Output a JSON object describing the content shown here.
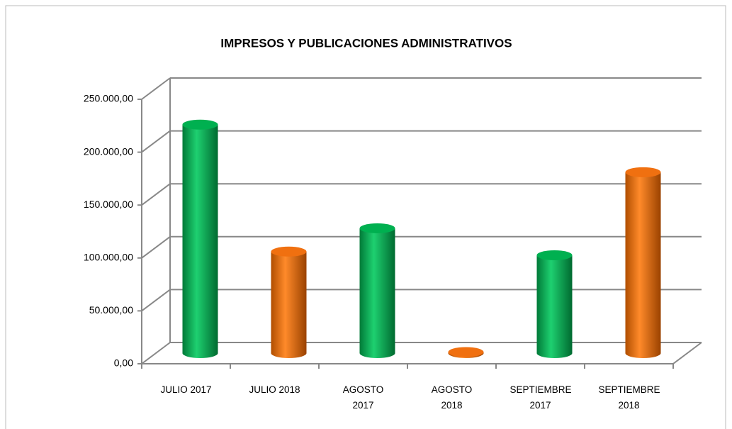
{
  "chart_data": {
    "type": "bar3d",
    "title": "IMPRESOS Y PUBLICACIONES ADMINISTRATIVOS",
    "categories": [
      "JULIO 2017",
      "JULIO 2018",
      "AGOSTO 2017",
      "AGOSTO 2018",
      "SEPTIEMBRE 2017",
      "SEPTIEMBRE 2018"
    ],
    "values": [
      216000,
      96000,
      118000,
      1000,
      92500,
      171000
    ],
    "colors": [
      "#00b050",
      "#f07010",
      "#00b050",
      "#f07010",
      "#00b050",
      "#f07010"
    ],
    "ylim": [
      0,
      250000
    ],
    "yticks": [
      {
        "value": 0,
        "label": "0,00"
      },
      {
        "value": 50000,
        "label": "50.000,00"
      },
      {
        "value": 100000,
        "label": "100.000,00"
      },
      {
        "value": 150000,
        "label": "150.000,00"
      },
      {
        "value": 200000,
        "label": "200.000,00"
      },
      {
        "value": 250000,
        "label": "250.000,00"
      }
    ],
    "grid": true
  }
}
